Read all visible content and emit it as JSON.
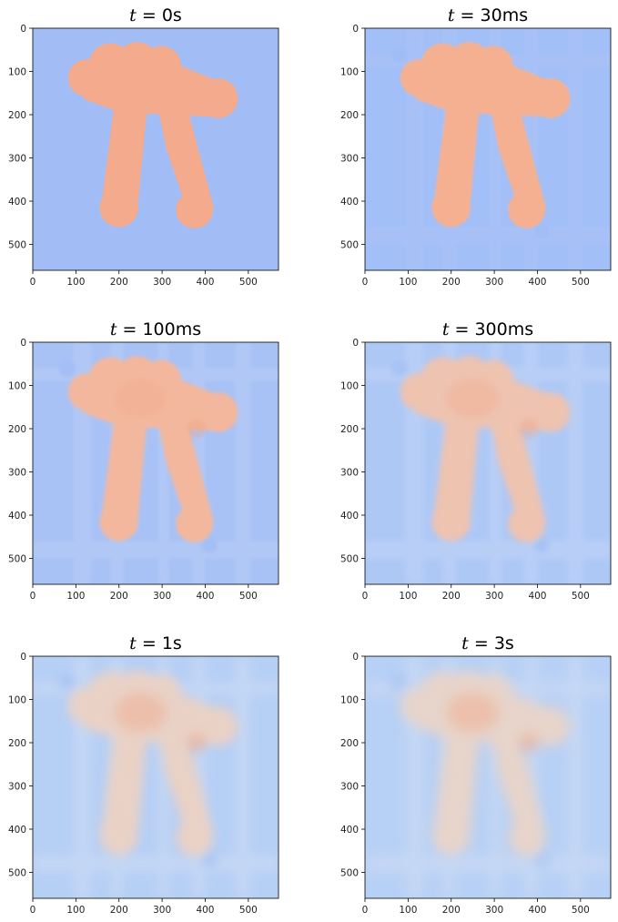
{
  "chart_data": [
    {
      "type": "heatmap",
      "title_var": "t",
      "title_value": "0s",
      "xlabel": "",
      "ylabel": "",
      "x_ticks": [
        0,
        100,
        200,
        300,
        400,
        500
      ],
      "y_ticks": [
        0,
        100,
        200,
        300,
        400,
        500
      ],
      "xlim": [
        0,
        570
      ],
      "ylim": [
        560,
        0
      ],
      "colormap": "coolwarm",
      "background_color": "#a2bdf6",
      "shape_color": "#f4aa8c",
      "diffusion": 0.0,
      "banding": 0.0
    },
    {
      "type": "heatmap",
      "title_var": "t",
      "title_value": "30ms",
      "xlabel": "",
      "ylabel": "",
      "x_ticks": [
        0,
        100,
        200,
        300,
        400,
        500
      ],
      "y_ticks": [
        0,
        100,
        200,
        300,
        400,
        500
      ],
      "xlim": [
        0,
        570
      ],
      "ylim": [
        560,
        0
      ],
      "colormap": "coolwarm",
      "background_color": "#a3bff7",
      "shape_color": "#f5b092",
      "diffusion": 0.08,
      "banding": 0.2
    },
    {
      "type": "heatmap",
      "title_var": "t",
      "title_value": "100ms",
      "xlabel": "",
      "ylabel": "",
      "x_ticks": [
        0,
        100,
        200,
        300,
        400,
        500
      ],
      "y_ticks": [
        0,
        100,
        200,
        300,
        400,
        500
      ],
      "xlim": [
        0,
        570
      ],
      "ylim": [
        560,
        0
      ],
      "colormap": "coolwarm",
      "background_color": "#a8c2f6",
      "shape_color": "#f3b79e",
      "diffusion": 0.18,
      "banding": 0.45
    },
    {
      "type": "heatmap",
      "title_var": "t",
      "title_value": "300ms",
      "xlabel": "",
      "ylabel": "",
      "x_ticks": [
        0,
        100,
        200,
        300,
        400,
        500
      ],
      "y_ticks": [
        0,
        100,
        200,
        300,
        400,
        500
      ],
      "xlim": [
        0,
        570
      ],
      "ylim": [
        560,
        0
      ],
      "colormap": "coolwarm",
      "background_color": "#aec8f6",
      "shape_color": "#eec3b0",
      "diffusion": 0.32,
      "banding": 0.6
    },
    {
      "type": "heatmap",
      "title_var": "t",
      "title_value": "1s",
      "xlabel": "",
      "ylabel": "",
      "x_ticks": [
        0,
        100,
        200,
        300,
        400,
        500
      ],
      "y_ticks": [
        0,
        100,
        200,
        300,
        400,
        500
      ],
      "xlim": [
        0,
        570
      ],
      "ylim": [
        560,
        0
      ],
      "colormap": "coolwarm",
      "background_color": "#b6cff5",
      "shape_color": "#e9d1c6",
      "diffusion": 0.6,
      "banding": 0.9
    },
    {
      "type": "heatmap",
      "title_var": "t",
      "title_value": "3s",
      "xlabel": "",
      "ylabel": "",
      "x_ticks": [
        0,
        100,
        200,
        300,
        400,
        500
      ],
      "y_ticks": [
        0,
        100,
        200,
        300,
        400,
        500
      ],
      "xlim": [
        0,
        570
      ],
      "ylim": [
        560,
        0
      ],
      "colormap": "coolwarm",
      "background_color": "#b7d0f5",
      "shape_color": "#e7d4ca",
      "diffusion": 0.7,
      "banding": 1.0
    }
  ]
}
